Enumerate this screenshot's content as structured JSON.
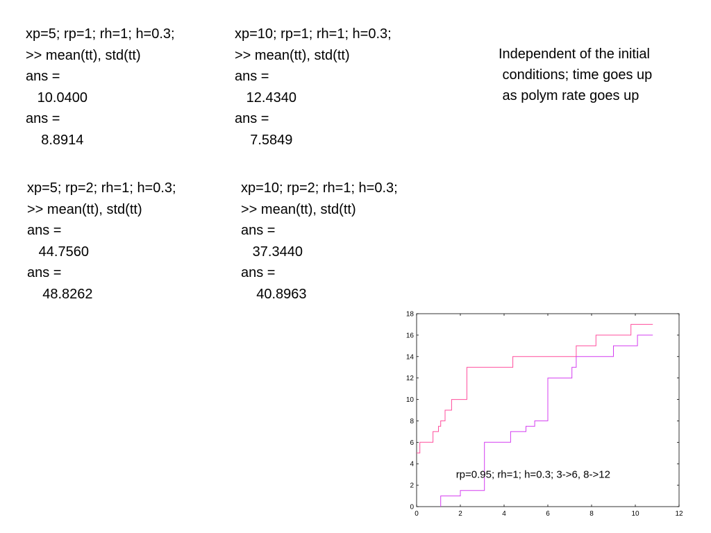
{
  "blocks": [
    {
      "lines": [
        "xp=5; rp=1; rh=1; h=0.3;",
        ">> mean(tt), std(tt)",
        "ans =",
        "   10.0400",
        "ans =",
        "    8.8914"
      ]
    },
    {
      "lines": [
        "xp=10; rp=1; rh=1; h=0.3;",
        ">> mean(tt), std(tt)",
        "ans =",
        "   12.4340",
        "ans =",
        "    7.5849"
      ]
    },
    {
      "lines": [
        "xp=5; rp=2; rh=1; h=0.3;",
        ">> mean(tt), std(tt)",
        "ans =",
        "   44.7560",
        "ans =",
        "    48.8262"
      ]
    },
    {
      "lines": [
        "xp=10; rp=2; rh=1; h=0.3;",
        ">> mean(tt), std(tt)",
        "ans =",
        "   37.3440",
        "ans =",
        "    40.8963"
      ]
    }
  ],
  "note": {
    "lines": [
      "Independent of the initial",
      " conditions; time goes up",
      " as polym rate goes up"
    ]
  },
  "chart_data": {
    "type": "line",
    "annotation": "rp=0.95; rh=1; h=0.3; 3->6, 8->12",
    "xlim": [
      0,
      12
    ],
    "ylim": [
      0,
      18
    ],
    "xticks": [
      0,
      2,
      4,
      6,
      8,
      10,
      12
    ],
    "yticks": [
      0,
      2,
      4,
      6,
      8,
      10,
      12,
      14,
      16,
      18
    ],
    "grid": false,
    "colors": [
      "#ff4d9c",
      "#d43cf0"
    ],
    "series": [
      {
        "x": [
          0,
          0.15,
          0.15,
          0.75,
          0.75,
          1.0,
          1.0,
          1.1,
          1.1,
          1.3,
          1.3,
          1.6,
          1.6,
          2.3,
          2.3,
          4.4,
          4.4,
          6.2,
          6.2,
          7.3,
          7.3,
          7.5,
          7.5,
          8.2,
          8.2,
          8.4,
          8.4,
          9.8,
          9.8,
          10.3,
          10.3,
          10.8
        ],
        "y": [
          5,
          5,
          6,
          6,
          7,
          7,
          7.5,
          7.5,
          8,
          8,
          9,
          9,
          10,
          10,
          13,
          13,
          14,
          14,
          14,
          14,
          15,
          15,
          15,
          15,
          16,
          16,
          16,
          16,
          17,
          17,
          17,
          17
        ]
      },
      {
        "x": [
          1.1,
          1.1,
          2.0,
          2.0,
          3.1,
          3.1,
          4.3,
          4.3,
          5.0,
          5.0,
          5.4,
          5.4,
          6.0,
          6.0,
          6.7,
          6.7,
          7.1,
          7.1,
          7.3,
          7.3,
          9.0,
          9.0,
          10.1,
          10.1,
          10.8
        ],
        "y": [
          0,
          1,
          1,
          1.5,
          1.5,
          6,
          6,
          7,
          7,
          7.5,
          7.5,
          8,
          8,
          12,
          12,
          12,
          12,
          13,
          13,
          14,
          14,
          15,
          15,
          16,
          16
        ]
      }
    ]
  }
}
